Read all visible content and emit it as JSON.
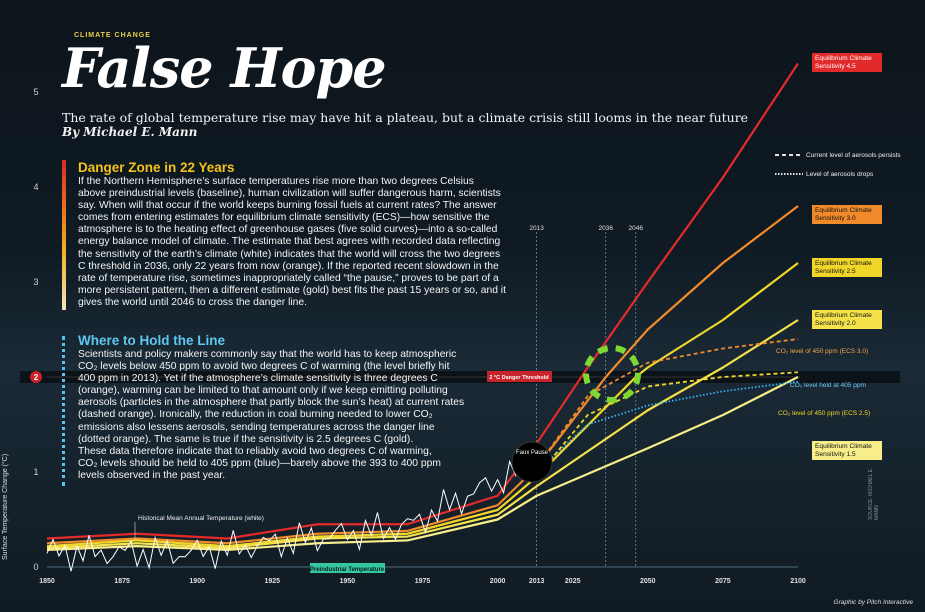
{
  "kicker": "CLIMATE CHANGE",
  "title": "False Hope",
  "subtitle": "The rate of global temperature rise may have hit a plateau, but a climate crisis still looms in the near future",
  "byline": "By Michael E. Mann",
  "sections": [
    {
      "heading": "Danger Zone in 22 Years",
      "body": "If the Northern Hemisphere’s surface temperatures rise more than two degrees Celsius\nabove preindustrial levels (baseline), human civilization will suffer dangerous harm, scientists\nsay. When will that occur if the world keeps burning fossil fuels at current rates? The answer\ncomes from entering estimates for equilibrium climate sensitivity (ECS)—how sensitive the\natmosphere is to the heating effect of greenhouse gases (five solid curves)—into a so-called\nenergy balance model of climate. The estimate that best agrees with recorded data reflecting\nthe sensitivity of the earth’s climate (white) indicates that the world will cross the two degrees\nC threshold in 2036, only 22 years from now (orange). If the reported recent slowdown in the\nrate of temperature rise, sometimes inappropriately called “the pause,” proves to be part of a\nmore persistent pattern, then a different estimate (gold) best fits the past 15 years or so, and it\ngives the world until 2046 to cross the danger line."
    },
    {
      "heading": "Where to Hold the Line",
      "body": "Scientists and policy makers commonly say that the world has to keep atmospheric\nCO₂ levels below 450 ppm to avoid two degrees C of warming (the level briefly hit\n400 ppm in 2013). Yet if the atmosphere’s climate sensitivity is three degrees C\n(orange), warming can be limited to that amount only if we keep emitting polluting\naerosols (particles in the atmosphere that partly block the sun’s heat) at current rates\n(dashed orange). Ironically, the reduction in coal burning needed to lower CO₂\nemissions also lessens aerosols, sending temperatures across the danger line\n(dotted orange). The same is true if the sensitivity is 2.5 degrees C (gold).\nThese data therefore indicate that to reliably avoid two degrees C of warming,\nCO₂ levels should be held to 405 ppm (blue)—barely above the 393 to 400 ppm\nlevels observed in the past year."
    }
  ],
  "labels": {
    "ecs45": "Equilibrium Climate Sensitivity 4.5",
    "ecs30": "Equilibrium Climate Sensitivity 3.0",
    "ecs25": "Equilibrium Climate Sensitivity 2.5",
    "ecs20": "Equilibrium Climate Sensitivity 2.0",
    "ecs15": "Equilibrium Climate Sensitivity 1.5",
    "legend_dashed": "Current level of aerosols persists",
    "legend_dotted": "Level of aerosols drops",
    "co2_450_30": "CO₂ level of 450 ppm (ECS 3.0)",
    "co2_405": "CO₂ level held at 405 ppm",
    "co2_450_25": "CO₂ level of 450 ppm (ECS 2.5)",
    "danger": "2 °C Danger Threshold",
    "faux": "Faux Pause",
    "historical": "Historical Mean Annual Temperature (white)",
    "baseline": "Preindustrial Temperature",
    "credit": "Graphic by Pitch Interactive",
    "source": "SOURCE: MICHAEL E. MANN"
  },
  "colors": {
    "ecs45": "#e42a2a",
    "ecs30": "#f08a2a",
    "ecs25": "#f1d62a",
    "ecs20": "#f5e24a",
    "ecs15": "#f7ee8a",
    "blue": "#36b4f0",
    "green": "#7fd832",
    "historical": "#ffffff"
  },
  "chart_data": {
    "type": "line",
    "xlabel": "",
    "ylabel": "Surface Temperature Change (°C)",
    "xlim": [
      1850,
      2100
    ],
    "ylim": [
      0,
      5
    ],
    "xticks": [
      1850,
      1875,
      1900,
      1925,
      1950,
      1975,
      2000,
      2013,
      2025,
      2050,
      2075,
      2100
    ],
    "yticks": [
      0,
      1,
      2,
      3,
      4,
      5
    ],
    "vlines": [
      2013,
      2036,
      2046
    ],
    "threshold": 2,
    "series": [
      {
        "name": "Equilibrium Climate Sensitivity 4.5",
        "x": [
          1850,
          1880,
          1910,
          1940,
          1970,
          2000,
          2013,
          2030,
          2050,
          2075,
          2100
        ],
        "y": [
          0.3,
          0.35,
          0.3,
          0.45,
          0.45,
          0.75,
          1.3,
          2.1,
          3.0,
          4.1,
          5.3
        ]
      },
      {
        "name": "Equilibrium Climate Sensitivity 3.0",
        "x": [
          1850,
          1880,
          1910,
          1940,
          1970,
          2000,
          2013,
          2036,
          2050,
          2075,
          2100
        ],
        "y": [
          0.25,
          0.3,
          0.25,
          0.35,
          0.38,
          0.65,
          1.05,
          2.0,
          2.5,
          3.2,
          3.8
        ]
      },
      {
        "name": "Equilibrium Climate Sensitivity 2.5",
        "x": [
          1850,
          1880,
          1910,
          1940,
          1970,
          2000,
          2013,
          2046,
          2050,
          2075,
          2100
        ],
        "y": [
          0.22,
          0.28,
          0.22,
          0.32,
          0.35,
          0.6,
          0.95,
          2.0,
          2.1,
          2.6,
          3.2
        ]
      },
      {
        "name": "Equilibrium Climate Sensitivity 2.0",
        "x": [
          1850,
          1880,
          1910,
          1940,
          1970,
          2000,
          2013,
          2050,
          2075,
          2100
        ],
        "y": [
          0.2,
          0.25,
          0.2,
          0.3,
          0.32,
          0.55,
          0.85,
          1.65,
          2.1,
          2.6
        ]
      },
      {
        "name": "Equilibrium Climate Sensitivity 1.5",
        "x": [
          1850,
          1880,
          1910,
          1940,
          1970,
          2000,
          2013,
          2050,
          2075,
          2100
        ],
        "y": [
          0.18,
          0.22,
          0.18,
          0.25,
          0.28,
          0.5,
          0.75,
          1.25,
          1.6,
          2.0
        ]
      },
      {
        "name": "CO₂ level of 450 ppm (ECS 3.0)",
        "x": [
          2013,
          2030,
          2050,
          2075,
          2100
        ],
        "y": [
          1.05,
          1.8,
          2.15,
          2.3,
          2.4
        ]
      },
      {
        "name": "CO₂ level held at 405 ppm",
        "x": [
          2013,
          2030,
          2050,
          2075,
          2100
        ],
        "y": [
          1.0,
          1.5,
          1.7,
          1.85,
          1.95
        ]
      },
      {
        "name": "CO₂ level of 450 ppm (ECS 2.5)",
        "x": [
          2013,
          2030,
          2050,
          2075,
          2100
        ],
        "y": [
          0.95,
          1.6,
          1.9,
          2.0,
          2.05
        ]
      }
    ]
  }
}
